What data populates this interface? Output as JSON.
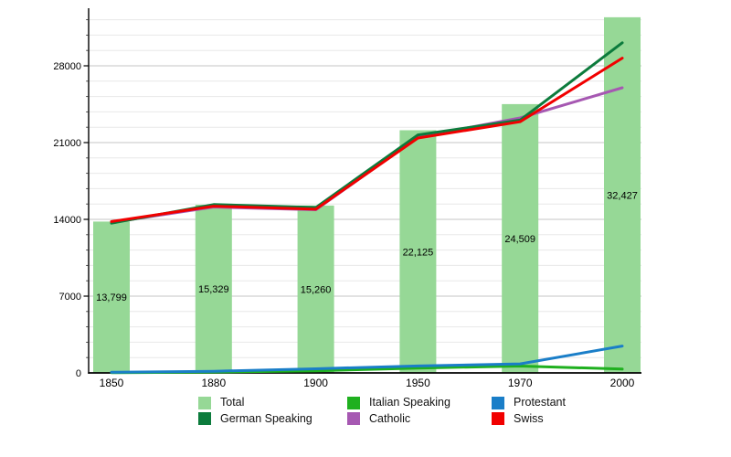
{
  "chart_data": {
    "type": "bar+line",
    "categories": [
      "1850",
      "1880",
      "1900",
      "1950",
      "1970",
      "2000"
    ],
    "bars": {
      "name": "Total",
      "color": "#96D896",
      "values": [
        13799,
        15329,
        15260,
        22125,
        24509,
        32427
      ],
      "value_labels": [
        "13,799",
        "15,329",
        "15,260",
        "22,125",
        "24,509",
        "32,427"
      ]
    },
    "lines": [
      {
        "name": "Catholic",
        "color": "#A658B2",
        "values": [
          13720,
          15120,
          14870,
          21500,
          23250,
          26000
        ]
      },
      {
        "name": "German Speaking",
        "color": "#0C7B3C",
        "values": [
          13650,
          15350,
          15080,
          21700,
          23050,
          30100
        ]
      },
      {
        "name": "Swiss",
        "color": "#F10000",
        "values": [
          13799,
          15200,
          14930,
          21420,
          22900,
          28700
        ]
      },
      {
        "name": "Italian Speaking",
        "color": "#1FB01F",
        "values": [
          20,
          70,
          190,
          440,
          630,
          350
        ]
      },
      {
        "name": "Protestant",
        "color": "#1A7EC8",
        "values": [
          60,
          150,
          380,
          640,
          820,
          2450
        ]
      }
    ],
    "y_axis": {
      "ticks": [
        0,
        7000,
        14000,
        21000,
        28000
      ],
      "tick_labels": [
        "0",
        "7000",
        "14000",
        "21000",
        "28000"
      ],
      "minor_interval": 1400,
      "min": 0,
      "max": 33300
    },
    "grid": {
      "horizontal": true,
      "vertical": false,
      "minor_color": "#E8E8E8",
      "major_color": "#C4C4C4"
    },
    "legend": {
      "position": "bottom",
      "items": [
        "Total",
        "German Speaking",
        "Italian Speaking",
        "Catholic",
        "Protestant",
        "Swiss"
      ]
    }
  }
}
